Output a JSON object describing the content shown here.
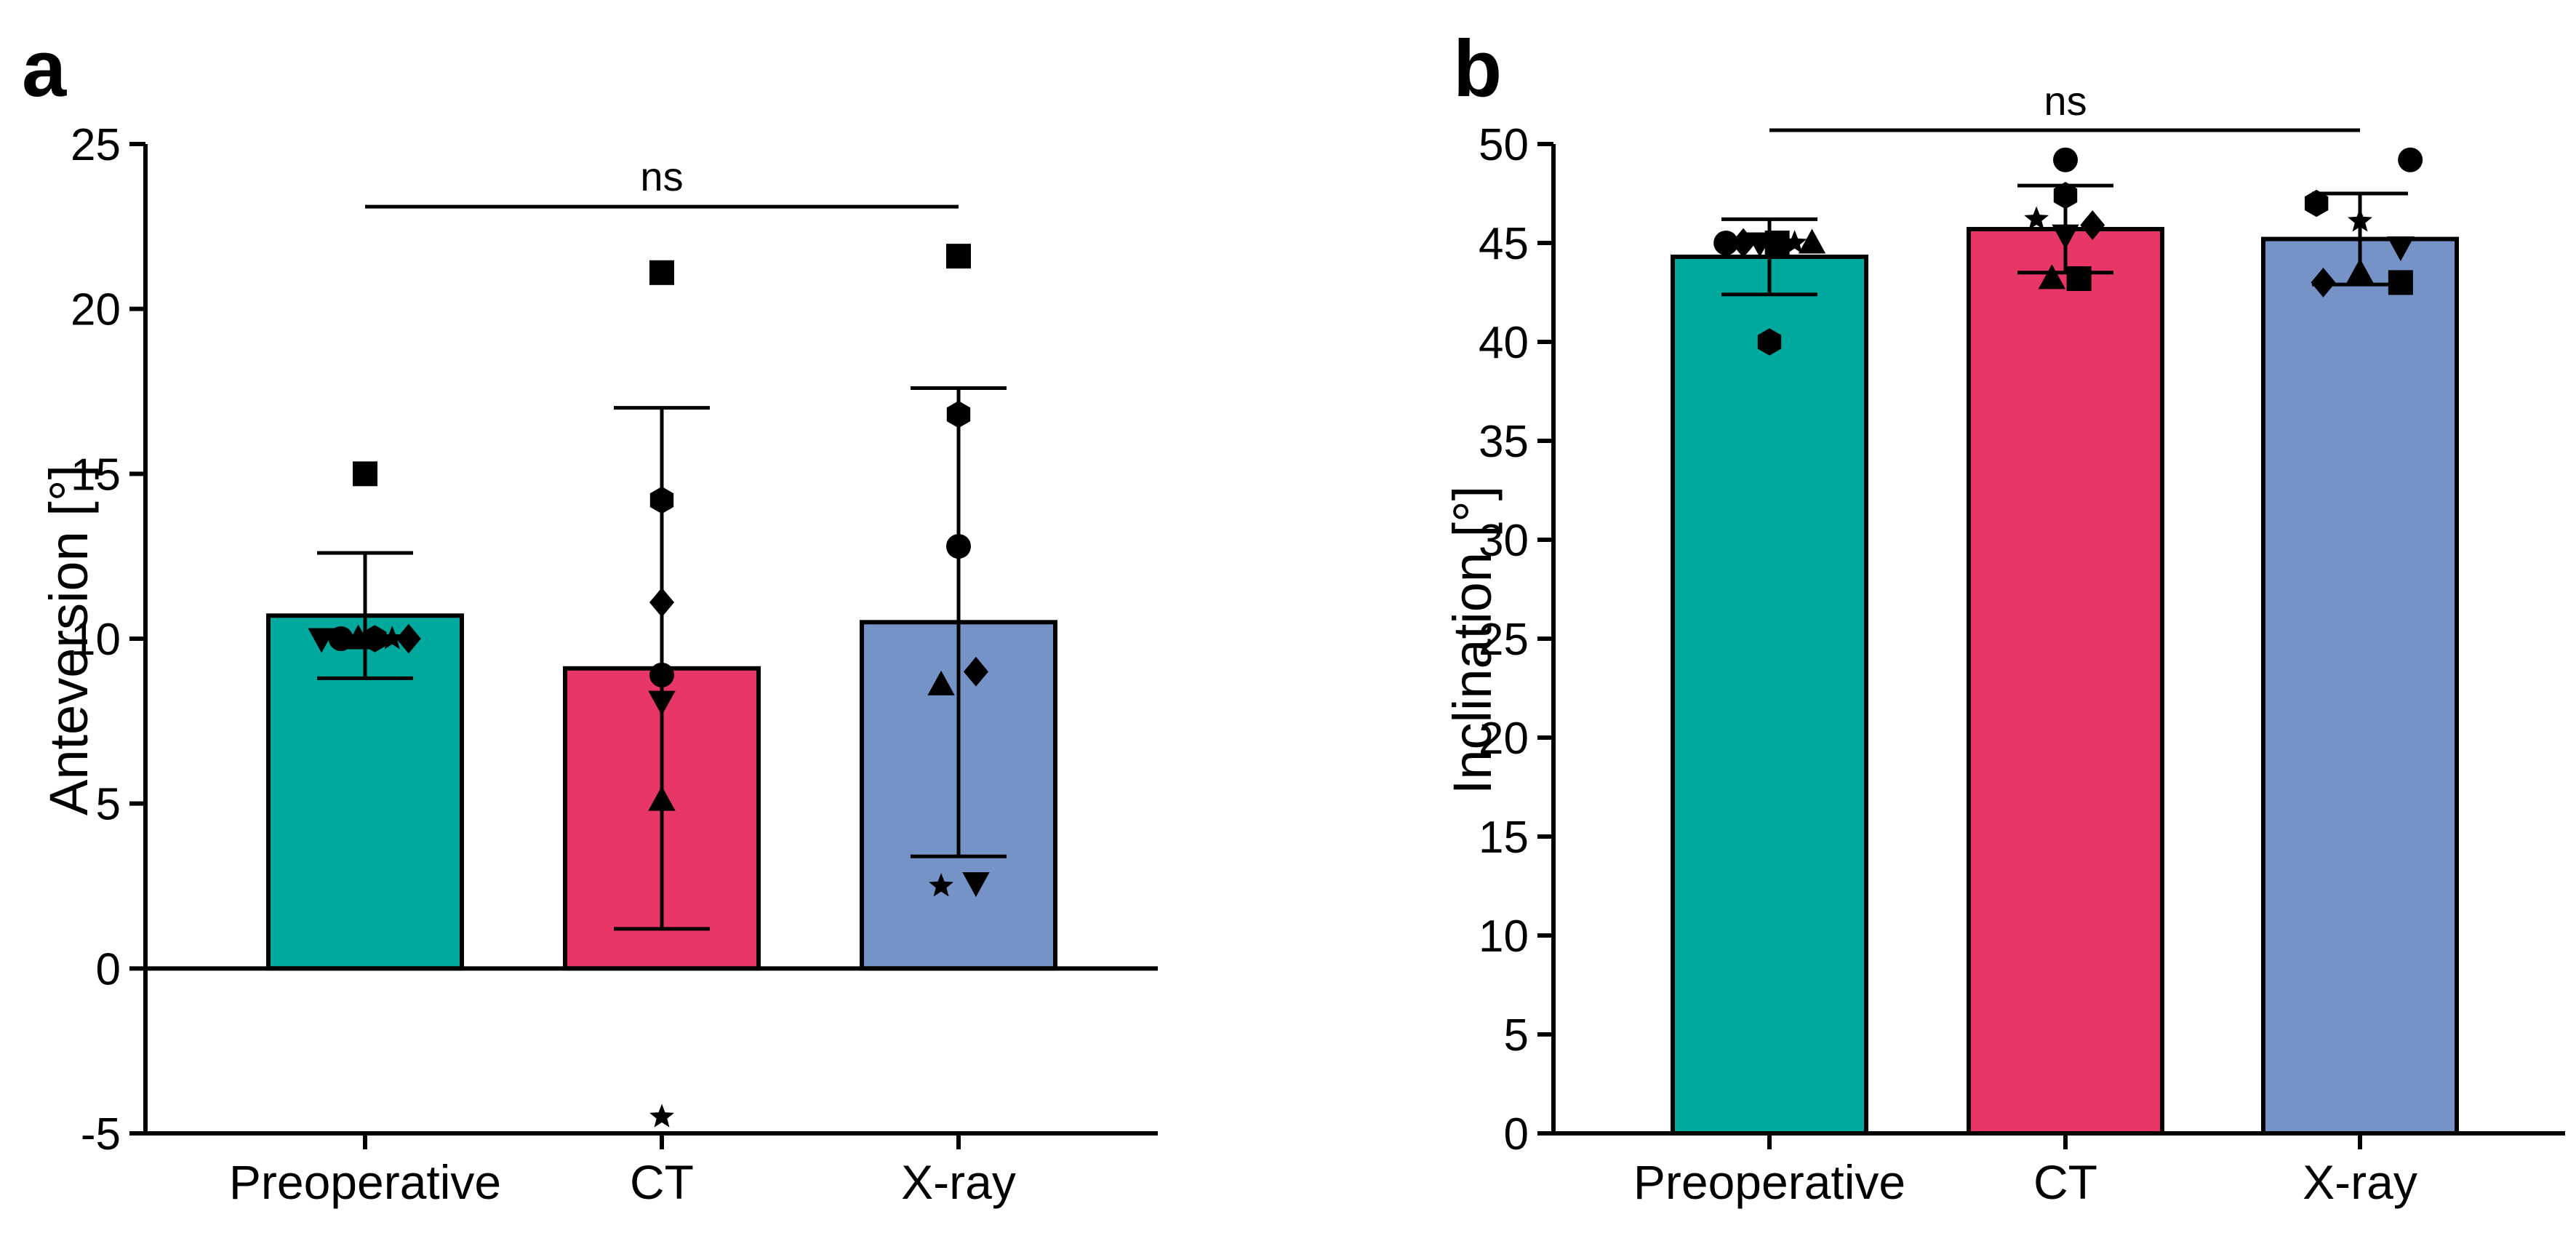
{
  "chart_data": [
    {
      "panel": "a",
      "type": "bar",
      "ylabel": "Anteversion [°]",
      "ylim": [
        -5,
        25
      ],
      "yticks": [
        -5,
        0,
        5,
        10,
        15,
        20,
        25
      ],
      "ytick_labels": [
        "-5",
        "0",
        "5",
        "10",
        "15",
        "20",
        "25"
      ],
      "categories": [
        "Preoperative",
        "CT",
        "X-ray"
      ],
      "colors": [
        "#00a99d",
        "#e83766",
        "#7593c7"
      ],
      "means": [
        10.7,
        9.1,
        10.5
      ],
      "err_low": [
        8.8,
        1.2,
        3.4
      ],
      "err_high": [
        12.6,
        17.0,
        17.6
      ],
      "significance": {
        "label": "ns",
        "from": 0,
        "to": 2,
        "y": 23.1
      },
      "points": [
        [
          {
            "m": "downtriangle",
            "dx": -0.45,
            "y": 10.0
          },
          {
            "m": "circle",
            "dx": -0.25,
            "y": 10.0
          },
          {
            "m": "triangle",
            "dx": -0.07,
            "y": 10.0
          },
          {
            "m": "hexagon",
            "dx": 0.1,
            "y": 10.0
          },
          {
            "m": "star",
            "dx": 0.28,
            "y": 10.0
          },
          {
            "m": "diamond",
            "dx": 0.45,
            "y": 10.0
          },
          {
            "m": "square",
            "dx": 0.0,
            "y": 15.0
          }
        ],
        [
          {
            "m": "square",
            "dx": 0.0,
            "y": 21.1
          },
          {
            "m": "hexagon",
            "dx": 0.0,
            "y": 14.2
          },
          {
            "m": "diamond",
            "dx": 0.0,
            "y": 11.1
          },
          {
            "m": "circle",
            "dx": 0.0,
            "y": 8.9
          },
          {
            "m": "downtriangle",
            "dx": 0.0,
            "y": 8.1
          },
          {
            "m": "triangle",
            "dx": 0.0,
            "y": 5.1
          },
          {
            "m": "star",
            "dx": 0.0,
            "y": -4.5
          }
        ],
        [
          {
            "m": "square",
            "dx": 0.0,
            "y": 21.6
          },
          {
            "m": "hexagon",
            "dx": 0.0,
            "y": 16.8
          },
          {
            "m": "circle",
            "dx": 0.0,
            "y": 12.8
          },
          {
            "m": "triangle",
            "dx": -0.18,
            "y": 8.6
          },
          {
            "m": "diamond",
            "dx": 0.18,
            "y": 9.0
          },
          {
            "m": "star",
            "dx": -0.18,
            "y": 2.5
          },
          {
            "m": "downtriangle",
            "dx": 0.18,
            "y": 2.6
          }
        ]
      ]
    },
    {
      "panel": "b",
      "type": "bar",
      "ylabel": "Inclination [°]",
      "ylim": [
        0,
        50
      ],
      "yticks": [
        0,
        5,
        10,
        15,
        20,
        25,
        30,
        35,
        40,
        45,
        50
      ],
      "ytick_labels": [
        "0",
        "5",
        "10",
        "15",
        "20",
        "25",
        "30",
        "35",
        "40",
        "45",
        "50"
      ],
      "categories": [
        "Preoperative",
        "CT",
        "X-ray"
      ],
      "colors": [
        "#00a99d",
        "#e83766",
        "#7593c7"
      ],
      "means": [
        44.3,
        45.7,
        45.2
      ],
      "err_low": [
        42.4,
        43.5,
        42.9
      ],
      "err_high": [
        46.2,
        47.9,
        47.5
      ],
      "significance": {
        "label": "ns",
        "from": 0,
        "to": 2,
        "y": 50.7
      },
      "points": [
        [
          {
            "m": "circle",
            "dx": -0.45,
            "y": 45.0
          },
          {
            "m": "diamond",
            "dx": -0.27,
            "y": 45.0
          },
          {
            "m": "downtriangle",
            "dx": -0.1,
            "y": 45.0
          },
          {
            "m": "square",
            "dx": 0.08,
            "y": 45.0
          },
          {
            "m": "star",
            "dx": 0.26,
            "y": 45.0
          },
          {
            "m": "triangle",
            "dx": 0.44,
            "y": 45.0
          },
          {
            "m": "hexagon",
            "dx": 0.0,
            "y": 40.0
          }
        ],
        [
          {
            "m": "circle",
            "dx": 0.0,
            "y": 49.2
          },
          {
            "m": "star",
            "dx": -0.3,
            "y": 46.2
          },
          {
            "m": "hexagon",
            "dx": 0.0,
            "y": 47.4
          },
          {
            "m": "downtriangle",
            "dx": 0.0,
            "y": 45.4
          },
          {
            "m": "diamond",
            "dx": 0.28,
            "y": 45.9
          },
          {
            "m": "triangle",
            "dx": -0.14,
            "y": 43.2
          },
          {
            "m": "square",
            "dx": 0.14,
            "y": 43.2
          }
        ],
        [
          {
            "m": "circle",
            "dx": 0.52,
            "y": 49.2
          },
          {
            "m": "hexagon",
            "dx": -0.45,
            "y": 47.0
          },
          {
            "m": "star",
            "dx": 0.0,
            "y": 46.1
          },
          {
            "m": "downtriangle",
            "dx": 0.42,
            "y": 44.8
          },
          {
            "m": "diamond",
            "dx": -0.38,
            "y": 43.0
          },
          {
            "m": "triangle",
            "dx": 0.0,
            "y": 43.5
          },
          {
            "m": "square",
            "dx": 0.42,
            "y": 43.0
          }
        ]
      ]
    }
  ]
}
